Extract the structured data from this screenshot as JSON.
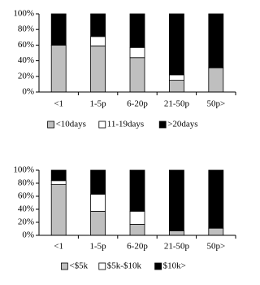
{
  "chart_data": [
    {
      "type": "stacked_bar",
      "categories": [
        "<1",
        "1-5p",
        "6-20p",
        "21-50p",
        "50p>"
      ],
      "series": [
        {
          "name": "<10days",
          "color": "#bfbfbf",
          "values": [
            60,
            59,
            44,
            15,
            31
          ]
        },
        {
          "name": "11-19days",
          "color": "#ffffff",
          "values": [
            0,
            12,
            13,
            7,
            0
          ]
        },
        {
          "name": ">20days",
          "color": "#000000",
          "values": [
            40,
            29,
            43,
            78,
            69
          ]
        }
      ],
      "ylim": [
        0,
        100
      ],
      "yticks": [
        {
          "value": 0,
          "label": "0%"
        },
        {
          "value": 20,
          "label": "20%"
        },
        {
          "value": 40,
          "label": "40%"
        },
        {
          "value": 60,
          "label": "60%"
        },
        {
          "value": 80,
          "label": "80%"
        },
        {
          "value": 100,
          "label": "100%"
        }
      ],
      "legend": "bottom"
    },
    {
      "type": "stacked_bar",
      "categories": [
        "<1",
        "1-5p",
        "6-20p",
        "21-50p",
        "50p>"
      ],
      "series": [
        {
          "name": "<$5k",
          "color": "#bfbfbf",
          "values": [
            78,
            37,
            17,
            7,
            11
          ]
        },
        {
          "name": "$5k-$10k",
          "color": "#ffffff",
          "values": [
            6,
            26,
            20,
            0,
            0
          ]
        },
        {
          "name": "$10k>",
          "color": "#000000",
          "values": [
            16,
            37,
            63,
            93,
            89
          ]
        }
      ],
      "ylim": [
        0,
        100
      ],
      "yticks": [
        {
          "value": 0,
          "label": "0%"
        },
        {
          "value": 20,
          "label": "20%"
        },
        {
          "value": 40,
          "label": "40%"
        },
        {
          "value": 60,
          "label": "60%"
        },
        {
          "value": 80,
          "label": "80%"
        },
        {
          "value": 100,
          "label": "100%"
        }
      ],
      "legend": "bottom"
    }
  ]
}
